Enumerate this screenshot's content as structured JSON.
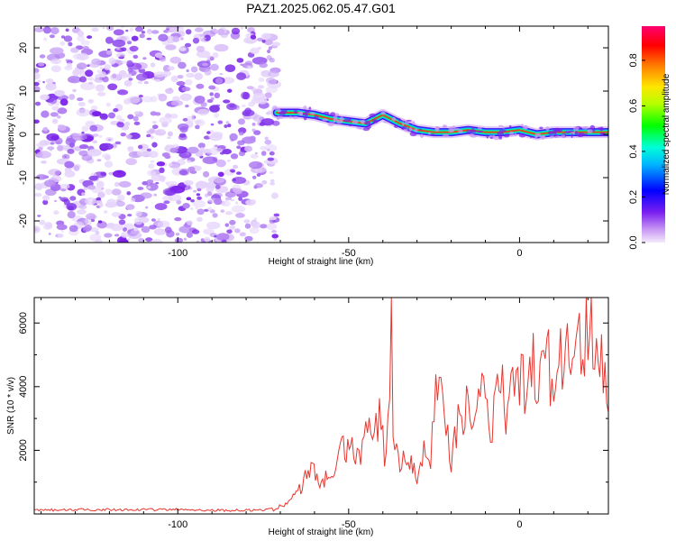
{
  "title": "PAZ1.2025.062.05.47.G01",
  "chart_data": [
    {
      "type": "heatmap",
      "xlabel": "Height of straight line (km)",
      "ylabel": "Frequency (Hz)",
      "xlim": [
        -142,
        26
      ],
      "ylim": [
        -25,
        25
      ],
      "xticks": [
        -100,
        -50,
        0
      ],
      "xtick_labels": [
        "-100",
        "-50",
        "0"
      ],
      "yticks": [
        -20,
        -10,
        0,
        10,
        20
      ],
      "ytick_labels": [
        "-20",
        "-10",
        "0",
        "10",
        "20"
      ],
      "noise_region_x": [
        -142,
        -71
      ],
      "ridge": {
        "x": [
          -71,
          -65,
          -60,
          -55,
          -50,
          -45,
          -40,
          -35,
          -30,
          -25,
          -20,
          -15,
          -10,
          -5,
          0,
          5,
          10,
          15,
          20,
          26
        ],
        "freq": [
          5,
          5,
          4.5,
          3.5,
          3,
          2.5,
          4.5,
          2.5,
          1,
          0.5,
          0.5,
          1,
          0.5,
          0.5,
          1,
          0,
          0.5,
          0.5,
          0.5,
          0.5
        ]
      },
      "colorbar": {
        "label": "Normalized spectral amplitude",
        "range": [
          0,
          0.95
        ],
        "ticks": [
          0,
          0.2,
          0.4,
          0.6,
          0.8
        ],
        "tick_labels": [
          "0.0",
          "0.2",
          "0.4",
          "0.6",
          "0.8"
        ],
        "colormap": "rainbow"
      }
    },
    {
      "type": "line",
      "xlabel": "Height of straight line (km)",
      "ylabel": "SNR (10 * v/v)",
      "xlim": [
        -142,
        26
      ],
      "ylim": [
        0,
        6800
      ],
      "xticks": [
        -100,
        -50,
        0
      ],
      "xtick_labels": [
        "-100",
        "-50",
        "0"
      ],
      "yticks": [
        2000,
        4000,
        6000
      ],
      "ytick_labels": [
        "2000",
        "4000",
        "6000"
      ],
      "color": "#e8352e",
      "series": [
        {
          "x": [
            -142,
            -130,
            -120,
            -110,
            -100,
            -90,
            -80,
            -72,
            -68,
            -64,
            -61,
            -58,
            -55,
            -52,
            -49,
            -47,
            -45,
            -43,
            -41,
            -39,
            -38,
            -37.5,
            -37,
            -35,
            -33,
            -30,
            -28,
            -26,
            -24,
            -22,
            -20,
            -18,
            -16,
            -14,
            -12,
            -10,
            -8,
            -6,
            -4,
            -2,
            0,
            2,
            4,
            6,
            8,
            10,
            12,
            14,
            16,
            18,
            20,
            22,
            24,
            26
          ],
          "y": [
            120,
            130,
            140,
            130,
            140,
            120,
            110,
            150,
            350,
            800,
            1600,
            900,
            1300,
            1900,
            2300,
            1600,
            2700,
            2200,
            2900,
            1600,
            3600,
            6800,
            2400,
            1400,
            2100,
            1300,
            2300,
            1700,
            4500,
            3100,
            1800,
            2700,
            3700,
            2600,
            3200,
            4300,
            2400,
            4600,
            2900,
            3700,
            4600,
            3400,
            4700,
            3900,
            5000,
            4200,
            5200,
            4800,
            5500,
            5000,
            6100,
            5300,
            5700,
            3200
          ]
        }
      ]
    }
  ]
}
